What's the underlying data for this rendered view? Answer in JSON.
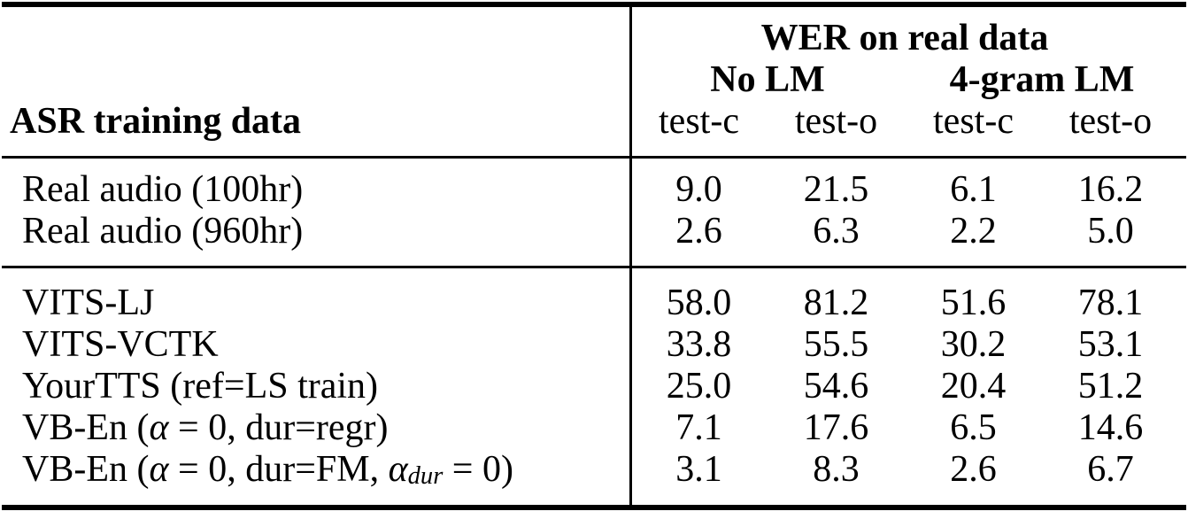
{
  "table": {
    "header": {
      "group_title": "WER on real data",
      "lm_groups": [
        "No LM",
        "4-gram LM"
      ],
      "subcols": [
        "test-c",
        "test-o",
        "test-c",
        "test-o"
      ],
      "row_label_header": "ASR training data"
    },
    "sections": [
      {
        "rows": [
          {
            "label_parts": [
              {
                "text": "Real audio (100hr)"
              }
            ],
            "values": [
              "9.0",
              "21.5",
              "6.1",
              "16.2"
            ]
          },
          {
            "label_parts": [
              {
                "text": "Real audio (960hr)"
              }
            ],
            "values": [
              "2.6",
              "6.3",
              "2.2",
              "5.0"
            ]
          }
        ]
      },
      {
        "rows": [
          {
            "label_parts": [
              {
                "text": "VITS-LJ"
              }
            ],
            "values": [
              "58.0",
              "81.2",
              "51.6",
              "78.1"
            ]
          },
          {
            "label_parts": [
              {
                "text": "VITS-VCTK"
              }
            ],
            "values": [
              "33.8",
              "55.5",
              "30.2",
              "53.1"
            ]
          },
          {
            "label_parts": [
              {
                "text": "YourTTS (ref=LS train)"
              }
            ],
            "values": [
              "25.0",
              "54.6",
              "20.4",
              "51.2"
            ]
          },
          {
            "label_parts": [
              {
                "text": "VB-En ("
              },
              {
                "text": "α"
              },
              {
                "text": " = 0, dur=regr)"
              }
            ],
            "values": [
              "7.1",
              "17.6",
              "6.5",
              "14.6"
            ]
          },
          {
            "label_parts": [
              {
                "text": "VB-En ("
              },
              {
                "text": "α"
              },
              {
                "text": " = 0, dur=FM, "
              },
              {
                "text": "α"
              },
              {
                "text": "dur"
              },
              {
                "text": " = 0)"
              }
            ],
            "values": [
              "3.1",
              "8.3",
              "2.6",
              "6.7"
            ]
          }
        ]
      }
    ],
    "colors": {
      "text": "#000000",
      "background": "#ffffff",
      "rule": "#000000"
    }
  }
}
